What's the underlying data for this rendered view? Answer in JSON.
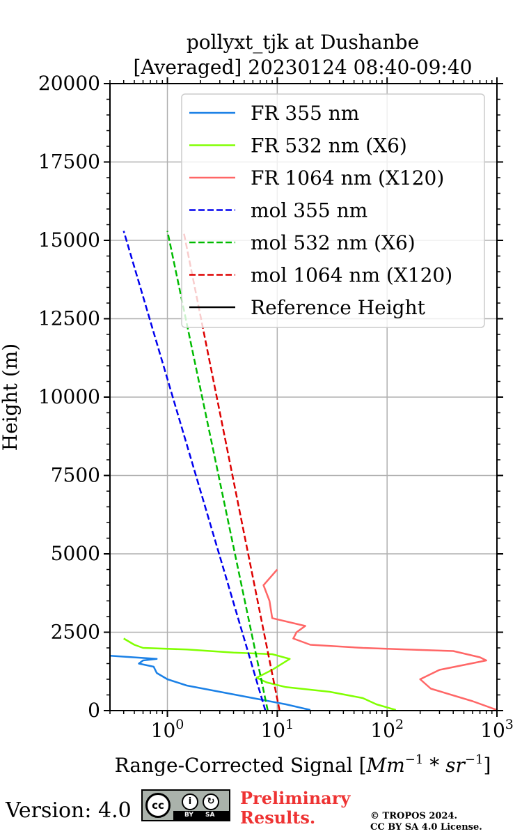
{
  "chart_data": {
    "type": "line",
    "title_line1": "pollyxt_tjk at Dushanbe",
    "title_line2": "[Averaged] 20230124 08:40-09:40",
    "xlabel": "Range-Corrected Signal [$Mm^{-1}*sr^{-1}$]",
    "xlabel_plain": "Range-Corrected Signal [",
    "xlabel_math": "Mm",
    "xlabel_exp1": "−1",
    "xlabel_mid": " * sr",
    "xlabel_exp2": "−1",
    "xlabel_end": "]",
    "ylabel": "Height (m)",
    "xscale": "log",
    "xlim": [
      0.3,
      1000
    ],
    "ylim": [
      0,
      20000
    ],
    "x_ticks": [
      {
        "value": 1,
        "base": "10",
        "exp": "0"
      },
      {
        "value": 10,
        "base": "10",
        "exp": "1"
      },
      {
        "value": 100,
        "base": "10",
        "exp": "2"
      },
      {
        "value": 1000,
        "base": "10",
        "exp": "3"
      }
    ],
    "y_ticks": [
      "0",
      "2500",
      "5000",
      "7500",
      "10000",
      "12500",
      "15000",
      "17500",
      "20000"
    ],
    "grid": true,
    "legend_position": "top-right",
    "series": [
      {
        "name": "FR 355 nm",
        "color": "#1a80e6",
        "style": "solid",
        "x": [
          20,
          12,
          6,
          3,
          1.5,
          1.0,
          0.8,
          0.75,
          0.55,
          0.6,
          0.8,
          0.3
        ],
        "y": [
          20,
          200,
          400,
          600,
          800,
          1000,
          1200,
          1400,
          1500,
          1600,
          1650,
          1750
        ]
      },
      {
        "name": "FR 532 nm (X6)",
        "color": "#80ff00",
        "style": "solid",
        "x": [
          120,
          80,
          60,
          30,
          12,
          8,
          6.5,
          9,
          13,
          9,
          4,
          1.5,
          0.6,
          0.5,
          0.4
        ],
        "y": [
          20,
          200,
          400,
          600,
          750,
          900,
          1050,
          1300,
          1650,
          1800,
          1850,
          1950,
          2000,
          2100,
          2300
        ]
      },
      {
        "name": "FR 1064 nm (X120)",
        "color": "#ff6666",
        "style": "solid",
        "x": [
          1000,
          600,
          250,
          200,
          300,
          800,
          700,
          400,
          150,
          60,
          20,
          14,
          15,
          18,
          9,
          8.5,
          7.5,
          10
        ],
        "y": [
          20,
          300,
          700,
          1000,
          1300,
          1600,
          1700,
          1900,
          1950,
          2000,
          2100,
          2300,
          2500,
          2700,
          2950,
          3500,
          4000,
          4500
        ]
      },
      {
        "name": "mol 355 nm",
        "color": "#0000ee",
        "style": "dashed",
        "x": [
          7.8,
          0.4
        ],
        "y": [
          0,
          15300
        ]
      },
      {
        "name": "mol 532 nm (X6)",
        "color": "#00bb00",
        "style": "dashed",
        "x": [
          8.2,
          1.0
        ],
        "y": [
          0,
          15300
        ]
      },
      {
        "name": "mol 1064 nm (X120)",
        "color": "#dd0000",
        "style": "dashed",
        "x": [
          10.5,
          1.4
        ],
        "y": [
          0,
          15300
        ]
      },
      {
        "name": "Reference Height",
        "color": "#000000",
        "style": "solid",
        "x": [],
        "y": []
      }
    ]
  },
  "footer": {
    "version": "Version: 4.0",
    "cc_label": "cc",
    "cc_by": "BY",
    "cc_sa": "SA",
    "preliminary": "Preliminary\nResults.",
    "copyright": "© TROPOS 2024.\nCC BY SA 4.0 License."
  }
}
